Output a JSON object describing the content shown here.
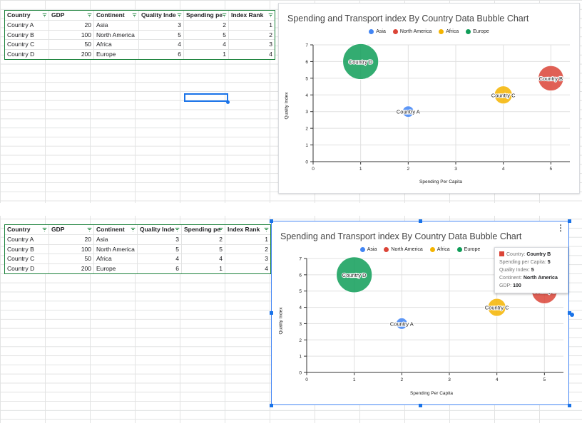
{
  "tables": [
    {
      "headers": [
        "Country",
        "GDP",
        "Continent",
        "Quality Inde",
        "Spending pe",
        "Index Rank"
      ],
      "rows": [
        [
          "Country A",
          "20",
          "Asia",
          "3",
          "2",
          "1"
        ],
        [
          "Country B",
          "100",
          "North America",
          "5",
          "5",
          "2"
        ],
        [
          "Country C",
          "50",
          "Africa",
          "4",
          "4",
          "3"
        ],
        [
          "Country D",
          "200",
          "Europe",
          "6",
          "1",
          "4"
        ]
      ]
    },
    {
      "headers": [
        "Country",
        "GDP",
        "Continent",
        "Quality Inde",
        "Spending pe",
        "Index Rank"
      ],
      "rows": [
        [
          "Country A",
          "20",
          "Asia",
          "3",
          "2",
          "1"
        ],
        [
          "Country B",
          "100",
          "North America",
          "5",
          "5",
          "2"
        ],
        [
          "Country C",
          "50",
          "Africa",
          "4",
          "4",
          "3"
        ],
        [
          "Country D",
          "200",
          "Europe",
          "6",
          "1",
          "4"
        ]
      ]
    }
  ],
  "chart_title": "Spending and Transport index By Country Data Bubble Chart",
  "x_axis_title": "Spending Per Capita",
  "y_axis_title": "Quality Index",
  "legend": [
    {
      "name": "Asia",
      "color": "#4285f4"
    },
    {
      "name": "North America",
      "color": "#db4437"
    },
    {
      "name": "Africa",
      "color": "#f4b400"
    },
    {
      "name": "Europe",
      "color": "#0f9d58"
    }
  ],
  "tooltip": {
    "country_label": "Country: ",
    "country_value": "Country B",
    "spending_label": "Spending per Capita: ",
    "spending_value": "5",
    "quality_label": "Quality Index: ",
    "quality_value": "5",
    "continent_label": "Continent: ",
    "continent_value": "North America",
    "gdp_label": "GDP: ",
    "gdp_value": "100"
  },
  "menu_icon": "⋮",
  "chart_data": [
    {
      "type": "scatter",
      "title": "Spending and Transport index By Country Data Bubble Chart",
      "xlabel": "Spending Per Capita",
      "ylabel": "Quality Index",
      "xlim": [
        0,
        5.4
      ],
      "ylim": [
        0,
        7
      ],
      "x_ticks": [
        "0",
        "1",
        "2",
        "3",
        "4",
        "5"
      ],
      "y_ticks": [
        "0",
        "1",
        "2",
        "3",
        "4",
        "5",
        "6",
        "7"
      ],
      "grid": true,
      "legend_position": "top",
      "series": [
        {
          "name": "Asia",
          "color": "#4285f4",
          "points": [
            {
              "label": "Country A",
              "x": 2,
              "y": 3,
              "size": 20
            }
          ]
        },
        {
          "name": "North America",
          "color": "#db4437",
          "points": [
            {
              "label": "Country B",
              "x": 5,
              "y": 5,
              "size": 100
            }
          ]
        },
        {
          "name": "Africa",
          "color": "#f4b400",
          "points": [
            {
              "label": "Country C",
              "x": 4,
              "y": 4,
              "size": 50
            }
          ]
        },
        {
          "name": "Europe",
          "color": "#0f9d58",
          "points": [
            {
              "label": "Country D",
              "x": 1,
              "y": 6,
              "size": 200
            }
          ]
        }
      ]
    },
    {
      "type": "scatter",
      "title": "Spending and Transport index By Country Data Bubble Chart",
      "xlabel": "Spending Per Capita",
      "ylabel": "Quality Index",
      "xlim": [
        0,
        5.4
      ],
      "ylim": [
        0,
        7
      ],
      "x_ticks": [
        "0",
        "1",
        "2",
        "3",
        "4",
        "5"
      ],
      "y_ticks": [
        "0",
        "1",
        "2",
        "3",
        "4",
        "5",
        "6",
        "7"
      ],
      "grid": true,
      "legend_position": "top",
      "series": [
        {
          "name": "Asia",
          "color": "#4285f4",
          "points": [
            {
              "label": "Country A",
              "x": 2,
              "y": 3,
              "size": 20
            }
          ]
        },
        {
          "name": "North America",
          "color": "#db4437",
          "points": [
            {
              "label": "Country B",
              "x": 5,
              "y": 5,
              "size": 100
            }
          ]
        },
        {
          "name": "Africa",
          "color": "#f4b400",
          "points": [
            {
              "label": "Country C",
              "x": 4,
              "y": 4,
              "size": 50
            }
          ]
        },
        {
          "name": "Europe",
          "color": "#0f9d58",
          "points": [
            {
              "label": "Country D",
              "x": 1,
              "y": 6,
              "size": 200
            }
          ]
        }
      ]
    }
  ]
}
